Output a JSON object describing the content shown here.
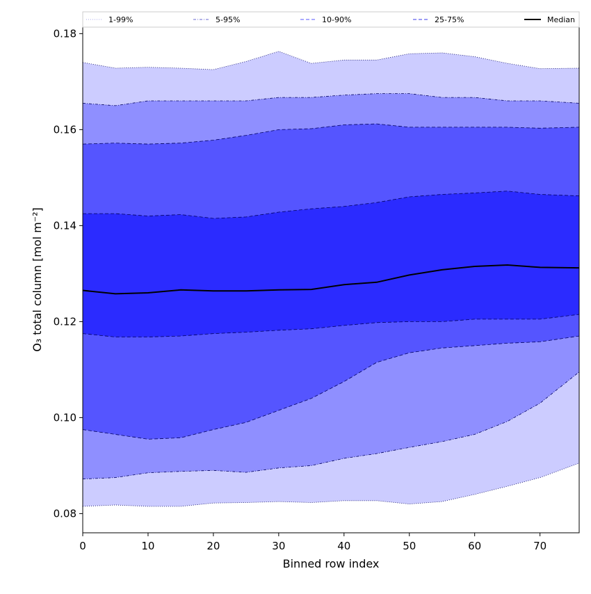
{
  "chart_data": {
    "type": "area",
    "title": "",
    "xlabel": "Binned row index",
    "ylabel": "O₃ total column [mol m⁻²]",
    "xlim": [
      0,
      76
    ],
    "ylim": [
      0.076,
      0.1815
    ],
    "x_ticks": [
      0,
      10,
      20,
      30,
      40,
      50,
      60,
      70
    ],
    "y_ticks": [
      0.08,
      0.1,
      0.12,
      0.14,
      0.16,
      0.18
    ],
    "x_tick_labels": [
      "0",
      "10",
      "20",
      "30",
      "40",
      "50",
      "60",
      "70"
    ],
    "y_tick_labels": [
      "0.08",
      "0.10",
      "0.12",
      "0.14",
      "0.16",
      "0.18"
    ],
    "grid": false,
    "legend_position": "top",
    "legend": [
      {
        "label": "1-99%",
        "color": "#ccccff",
        "style": "dotted"
      },
      {
        "label": "5-95%",
        "color": "#8f8fff",
        "style": "dashdot"
      },
      {
        "label": "10-90%",
        "color": "#5555ff",
        "style": "dashed"
      },
      {
        "label": "25-75%",
        "color": "#2b2bff",
        "style": "dashed"
      },
      {
        "label": "Median",
        "color": "#000000",
        "style": "solid"
      }
    ],
    "x": [
      0,
      5,
      10,
      15,
      20,
      25,
      30,
      35,
      40,
      45,
      50,
      55,
      60,
      65,
      70,
      76
    ],
    "bands": [
      {
        "name": "1-99%",
        "color": "#ccccff",
        "lower": [
          0.0815,
          0.0818,
          0.0815,
          0.0815,
          0.0822,
          0.0823,
          0.0825,
          0.0823,
          0.0827,
          0.0827,
          0.082,
          0.0825,
          0.084,
          0.0857,
          0.0875,
          0.0905
        ],
        "upper": [
          0.174,
          0.1728,
          0.173,
          0.1728,
          0.1725,
          0.1742,
          0.1763,
          0.1738,
          0.1745,
          0.1745,
          0.1758,
          0.176,
          0.1752,
          0.1738,
          0.1727,
          0.1728
        ]
      },
      {
        "name": "5-95%",
        "color": "#8f8fff",
        "lower": [
          0.0872,
          0.0875,
          0.0885,
          0.0888,
          0.089,
          0.0886,
          0.0895,
          0.09,
          0.0915,
          0.0925,
          0.0938,
          0.095,
          0.0965,
          0.0992,
          0.103,
          0.1095
        ],
        "upper": [
          0.1655,
          0.165,
          0.166,
          0.166,
          0.166,
          0.166,
          0.1667,
          0.1667,
          0.1672,
          0.1675,
          0.1675,
          0.1667,
          0.1667,
          0.166,
          0.166,
          0.1655
        ]
      },
      {
        "name": "10-90%",
        "color": "#5555ff",
        "lower": [
          0.0975,
          0.0965,
          0.0955,
          0.0958,
          0.0975,
          0.099,
          0.1015,
          0.104,
          0.1075,
          0.1115,
          0.1135,
          0.1145,
          0.115,
          0.1155,
          0.1158,
          0.117
        ],
        "upper": [
          0.157,
          0.1572,
          0.157,
          0.1572,
          0.1578,
          0.1588,
          0.16,
          0.1602,
          0.161,
          0.1612,
          0.1605,
          0.1605,
          0.1605,
          0.1605,
          0.1603,
          0.1605
        ]
      },
      {
        "name": "25-75%",
        "color": "#2b2bff",
        "lower": [
          0.1175,
          0.1168,
          0.1168,
          0.117,
          0.1175,
          0.1178,
          0.1182,
          0.1185,
          0.1192,
          0.1198,
          0.12,
          0.12,
          0.1205,
          0.1205,
          0.1205,
          0.1215
        ],
        "upper": [
          0.1425,
          0.1425,
          0.142,
          0.1423,
          0.1415,
          0.1418,
          0.1428,
          0.1435,
          0.144,
          0.1448,
          0.146,
          0.1465,
          0.1468,
          0.1472,
          0.1465,
          0.1462
        ]
      }
    ],
    "median": {
      "name": "Median",
      "color": "#000000",
      "values": [
        0.1265,
        0.1258,
        0.126,
        0.1266,
        0.1264,
        0.1264,
        0.1266,
        0.1267,
        0.1277,
        0.1282,
        0.1297,
        0.1308,
        0.1315,
        0.1318,
        0.1313,
        0.1312
      ]
    }
  }
}
